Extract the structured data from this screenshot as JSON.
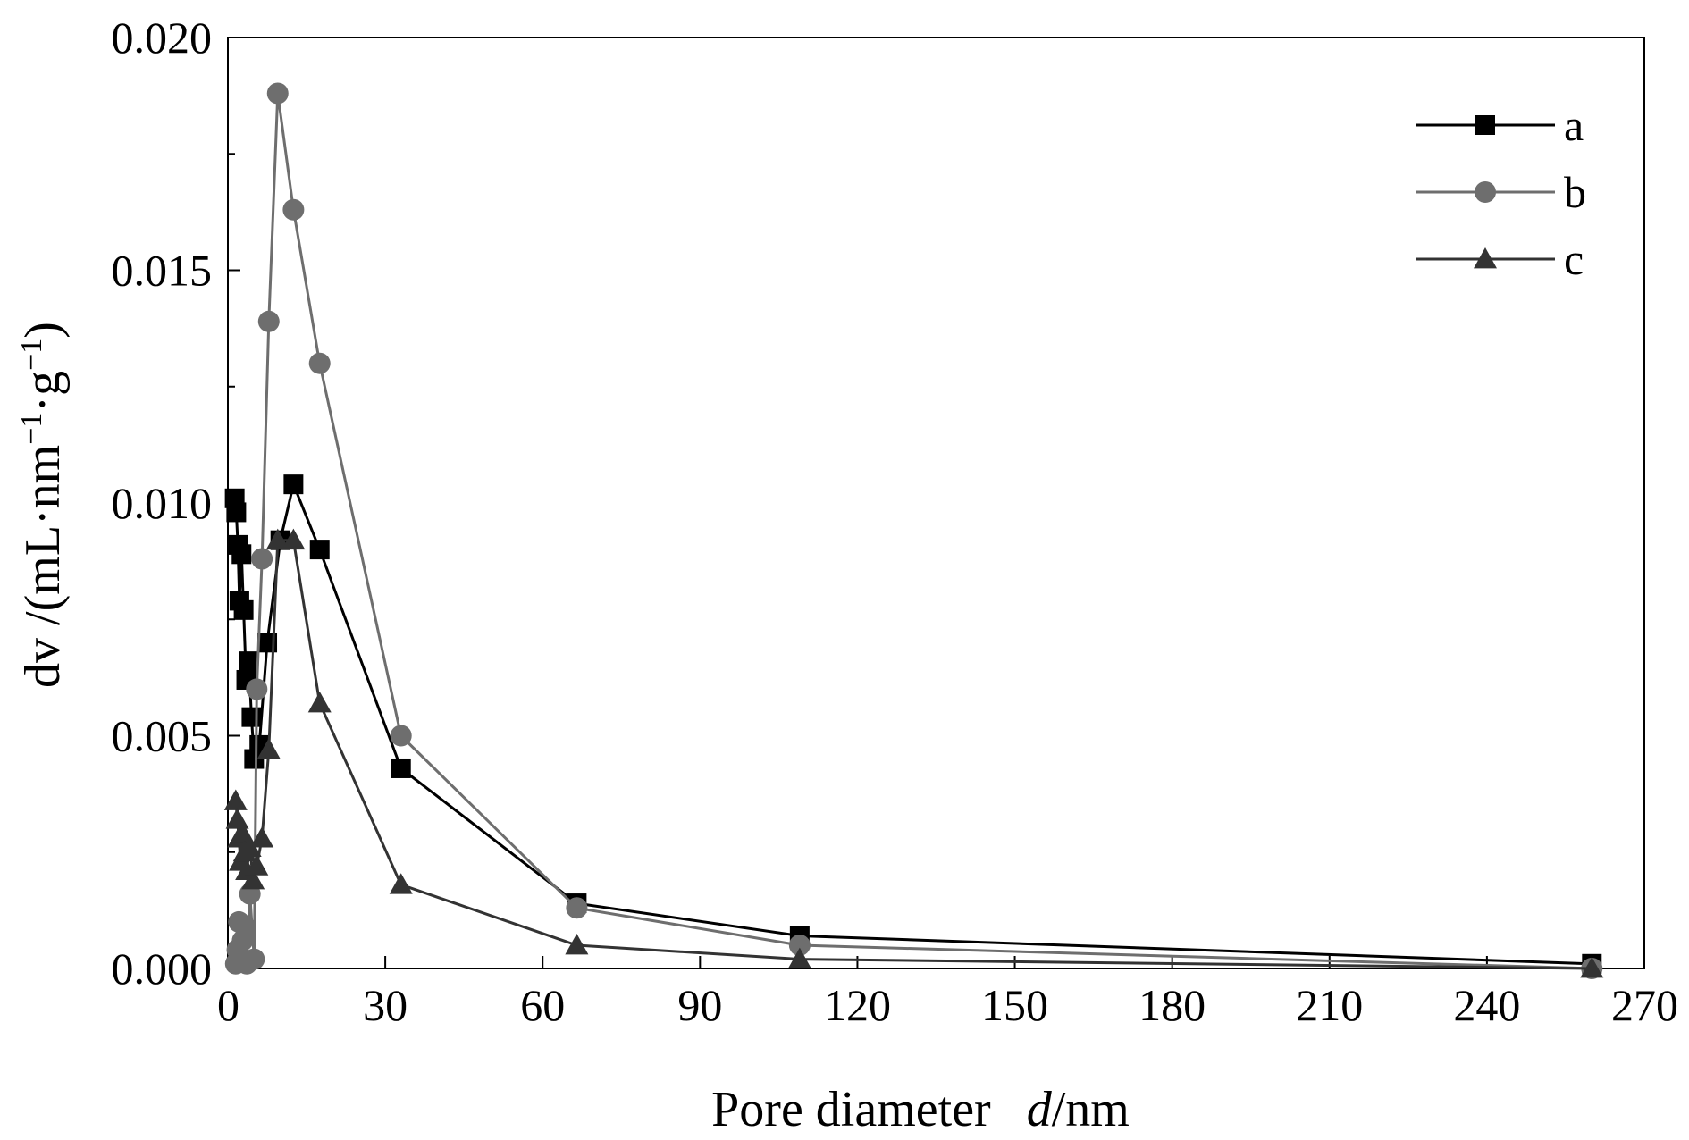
{
  "chart_data": {
    "type": "line",
    "xlabel": {
      "main": "Pore diameter",
      "var": "d",
      "unit": "/nm"
    },
    "ylabel": {
      "var": "dv",
      "unit_open": " /(mL·nm",
      "exp1": "−1",
      "unit_mid": "·g",
      "exp2": "−1",
      "unit_close": ")"
    },
    "xlim": [
      0,
      270
    ],
    "ylim": [
      0,
      0.02
    ],
    "xticks": [
      "0",
      "30",
      "60",
      "90",
      "120",
      "150",
      "180",
      "210",
      "240",
      "270"
    ],
    "yticks": [
      "0.000",
      "0.005",
      "0.010",
      "0.015",
      "0.020"
    ],
    "legend_position": "top-right",
    "series": [
      {
        "name": "a",
        "marker": "square",
        "color": "#000000",
        "points": [
          [
            1.3,
            0.0101
          ],
          [
            1.6,
            0.0098
          ],
          [
            1.9,
            0.0091
          ],
          [
            2.2,
            0.0079
          ],
          [
            2.6,
            0.0089
          ],
          [
            3.0,
            0.0077
          ],
          [
            3.5,
            0.0062
          ],
          [
            4.0,
            0.0066
          ],
          [
            4.5,
            0.0054
          ],
          [
            5.0,
            0.0045
          ],
          [
            6.0,
            0.0048
          ],
          [
            7.5,
            0.007
          ],
          [
            10,
            0.0092
          ],
          [
            12.5,
            0.0104
          ],
          [
            17.5,
            0.009
          ],
          [
            33,
            0.0043
          ],
          [
            66.5,
            0.0014
          ],
          [
            109,
            0.0007
          ],
          [
            260,
            0.0001
          ]
        ]
      },
      {
        "name": "b",
        "marker": "circle",
        "color": "#6e6e6e",
        "points": [
          [
            1.5,
            0.0001
          ],
          [
            1.8,
            0.0004
          ],
          [
            2.1,
            0.001
          ],
          [
            2.4,
            0.0002
          ],
          [
            2.8,
            0.0006
          ],
          [
            3.2,
            0.0009
          ],
          [
            3.6,
            0.0001
          ],
          [
            4.2,
            0.0016
          ],
          [
            5.0,
            0.0002
          ],
          [
            5.5,
            0.006
          ],
          [
            6.5,
            0.0088
          ],
          [
            7.8,
            0.0139
          ],
          [
            9.5,
            0.0188
          ],
          [
            12.5,
            0.0163
          ],
          [
            17.5,
            0.013
          ],
          [
            33,
            0.005
          ],
          [
            66.5,
            0.0013
          ],
          [
            109,
            0.0005
          ],
          [
            260,
            0.0
          ]
        ]
      },
      {
        "name": "c",
        "marker": "triangle",
        "color": "#333333",
        "points": [
          [
            1.5,
            0.0036
          ],
          [
            1.8,
            0.0032
          ],
          [
            2.1,
            0.0028
          ],
          [
            2.4,
            0.0023
          ],
          [
            2.8,
            0.0029
          ],
          [
            3.2,
            0.0025
          ],
          [
            3.6,
            0.0021
          ],
          [
            4.2,
            0.0026
          ],
          [
            4.8,
            0.0019
          ],
          [
            5.5,
            0.0022
          ],
          [
            6.5,
            0.0028
          ],
          [
            7.8,
            0.0047
          ],
          [
            9.5,
            0.0092
          ],
          [
            12.5,
            0.0092
          ],
          [
            17.5,
            0.0057
          ],
          [
            33,
            0.0018
          ],
          [
            66.5,
            0.0005
          ],
          [
            109,
            0.0002
          ],
          [
            260,
            0.0
          ]
        ]
      }
    ]
  }
}
